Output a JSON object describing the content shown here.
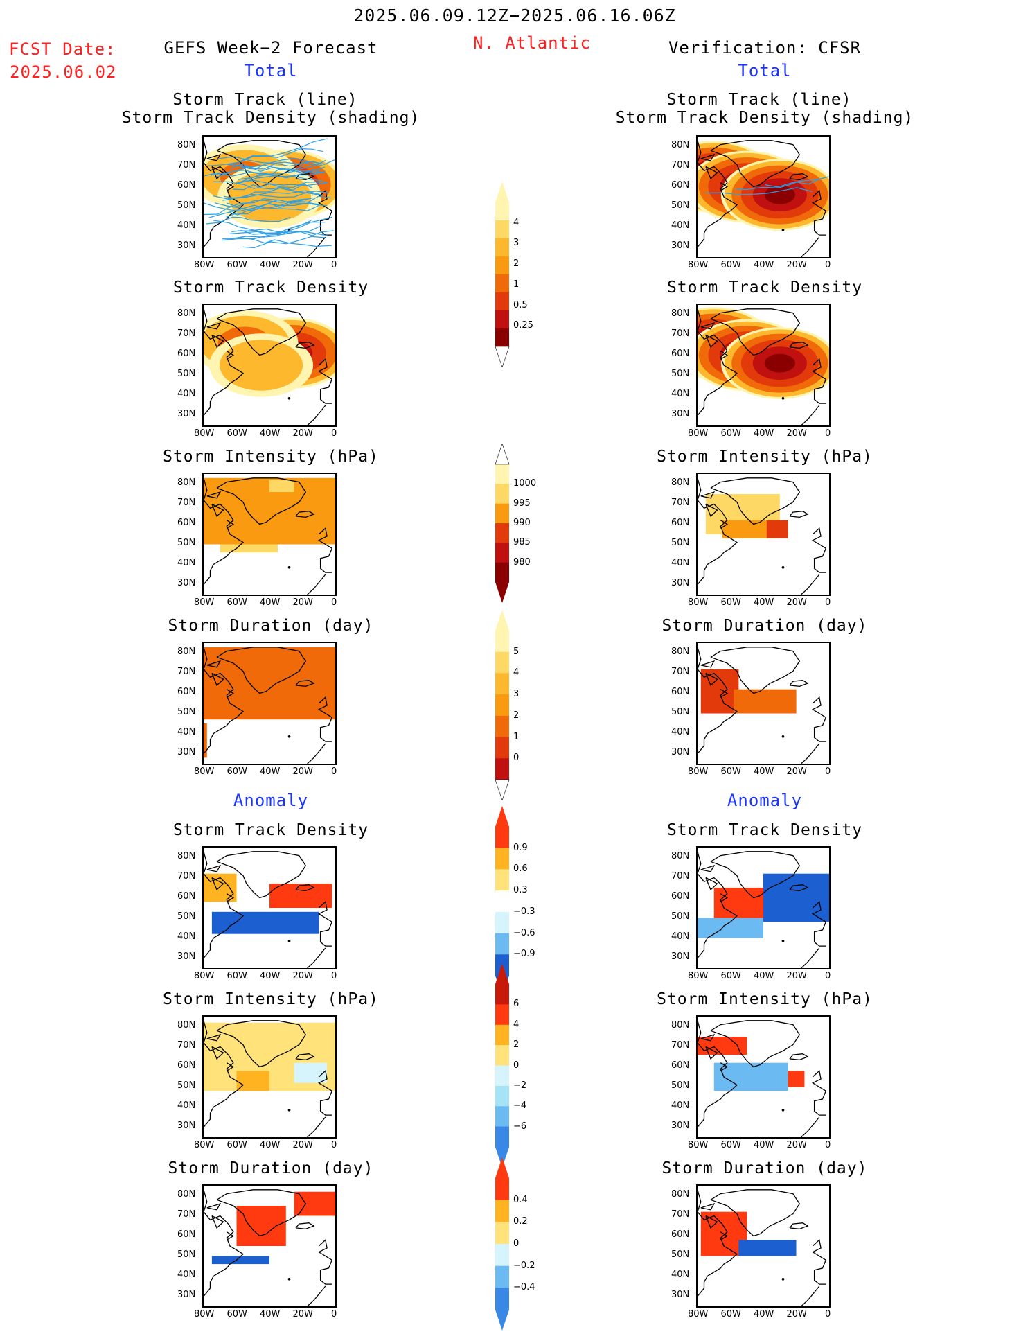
{
  "header": {
    "date_range": "2025.06.09.12Z−2025.06.16.06Z",
    "fcst_label": "FCST Date:",
    "fcst_date": "2025.06.02",
    "left_title": "GEFS Week−2 Forecast",
    "region": "N. Atlantic",
    "right_title": "Verification: CFSR",
    "total_label": "Total",
    "anomaly_label": "Anomaly"
  },
  "colors": {
    "total_scale": [
      "#fff5b0",
      "#fdd865",
      "#fdb82e",
      "#f99a10",
      "#f06a0a",
      "#e23a0a",
      "#c01010",
      "#8a0000"
    ],
    "anom_pos": [
      "#ffe27a",
      "#ffb320",
      "#ff7d10",
      "#ff3a10",
      "#c81a0a"
    ],
    "anom_neg": [
      "#d6f4fb",
      "#a4e4f6",
      "#6cbaf2",
      "#3a88e6",
      "#1b5fd1",
      "#0a3ea8"
    ],
    "track_line": "#2aa0e8",
    "accent_red": "#ff2020",
    "accent_blue": "#1a33ff"
  },
  "axes": {
    "lat_ticks": [
      "80N",
      "70N",
      "60N",
      "50N",
      "40N",
      "30N"
    ],
    "lon_ticks": [
      "80W",
      "60W",
      "40W",
      "20W",
      "0"
    ]
  },
  "chart_data": [
    {
      "type": "heatmap",
      "panel": "gefs-total-track",
      "title": "Storm Track (line)",
      "subtitle": "Storm Track Density (shading)",
      "source": "GEFS Week-2 Forecast",
      "xlim": [
        -80,
        0
      ],
      "ylim": [
        25,
        85
      ],
      "centers": [
        {
          "lon": -30,
          "lat": 61,
          "value": 3.5
        },
        {
          "lon": -55,
          "lat": 65,
          "value": 1.2
        },
        {
          "lon": -40,
          "lat": 55,
          "value": 1.0
        }
      ]
    },
    {
      "type": "heatmap",
      "panel": "cfsr-total-track",
      "title": "Storm Track (line)",
      "subtitle": "Storm Track Density (shading)",
      "source": "Verification: CFSR",
      "xlim": [
        -80,
        0
      ],
      "ylim": [
        25,
        85
      ],
      "centers": [
        {
          "lon": -70,
          "lat": 65,
          "value": 4.5
        },
        {
          "lon": -50,
          "lat": 60,
          "value": 4.5
        },
        {
          "lon": -30,
          "lat": 56,
          "value": 4.5
        }
      ]
    },
    {
      "type": "heatmap",
      "panel": "gefs-total-density",
      "title": "Storm Track Density",
      "source": "GEFS Week-2 Forecast",
      "xlim": [
        -80,
        0
      ],
      "ylim": [
        25,
        85
      ],
      "centers": [
        {
          "lon": -27,
          "lat": 61,
          "value": 3.8
        },
        {
          "lon": -55,
          "lat": 66,
          "value": 1.3
        },
        {
          "lon": -45,
          "lat": 55,
          "value": 1.0
        }
      ]
    },
    {
      "type": "heatmap",
      "panel": "cfsr-total-density",
      "title": "Storm Track Density",
      "source": "Verification: CFSR",
      "xlim": [
        -80,
        0
      ],
      "ylim": [
        25,
        85
      ],
      "centers": [
        {
          "lon": -70,
          "lat": 66,
          "value": 4.5
        },
        {
          "lon": -50,
          "lat": 60,
          "value": 4.5
        },
        {
          "lon": -30,
          "lat": 56,
          "value": 4.5
        }
      ]
    },
    {
      "type": "heatmap",
      "panel": "gefs-total-intensity",
      "title": "Storm Intensity (hPa)",
      "source": "GEFS Week-2 Forecast",
      "xlim": [
        -80,
        0
      ],
      "ylim": [
        25,
        85
      ],
      "regions": [
        {
          "lon": [
            -80,
            0
          ],
          "lat": [
            50,
            83
          ],
          "value": 992
        },
        {
          "lon": [
            -70,
            -35
          ],
          "lat": [
            46,
            50
          ],
          "value": 997
        },
        {
          "lon": [
            -40,
            -25
          ],
          "lat": [
            76,
            82
          ],
          "value": 997
        }
      ]
    },
    {
      "type": "heatmap",
      "panel": "cfsr-total-intensity",
      "title": "Storm Intensity (hPa)",
      "source": "Verification: CFSR",
      "xlim": [
        -80,
        0
      ],
      "ylim": [
        25,
        85
      ],
      "regions": [
        {
          "lon": [
            -75,
            -30
          ],
          "lat": [
            55,
            75
          ],
          "value": 997
        },
        {
          "lon": [
            -65,
            -30
          ],
          "lat": [
            53,
            62
          ],
          "value": 993
        },
        {
          "lon": [
            -38,
            -25
          ],
          "lat": [
            53,
            62
          ],
          "value": 988
        }
      ]
    },
    {
      "type": "heatmap",
      "panel": "gefs-total-duration",
      "title": "Storm Duration (day)",
      "source": "GEFS Week-2 Forecast",
      "xlim": [
        -80,
        0
      ],
      "ylim": [
        25,
        85
      ],
      "regions": [
        {
          "lon": [
            -80,
            0
          ],
          "lat": [
            47,
            83
          ],
          "value": 3.5
        },
        {
          "lon": [
            -80,
            -78
          ],
          "lat": [
            28,
            45
          ],
          "value": 3.5
        }
      ]
    },
    {
      "type": "heatmap",
      "panel": "cfsr-total-duration",
      "title": "Storm Duration (day)",
      "source": "Verification: CFSR",
      "xlim": [
        -80,
        0
      ],
      "ylim": [
        25,
        85
      ],
      "regions": [
        {
          "lon": [
            -78,
            -55
          ],
          "lat": [
            50,
            72
          ],
          "value": 4.5
        },
        {
          "lon": [
            -58,
            -20
          ],
          "lat": [
            50,
            62
          ],
          "value": 3.5
        }
      ]
    },
    {
      "type": "heatmap",
      "panel": "gefs-anom-density",
      "title": "Storm Track Density",
      "source": "GEFS Week-2 Forecast",
      "xlim": [
        -80,
        0
      ],
      "ylim": [
        25,
        85
      ],
      "regions": [
        {
          "lon": [
            -40,
            -2
          ],
          "lat": [
            55,
            67
          ],
          "value": 0.9
        },
        {
          "lon": [
            -75,
            -10
          ],
          "lat": [
            42,
            53
          ],
          "value": -0.6
        },
        {
          "lon": [
            -80,
            -60
          ],
          "lat": [
            58,
            72
          ],
          "value": 0.3
        }
      ]
    },
    {
      "type": "heatmap",
      "panel": "cfsr-anom-density",
      "title": "Storm Track Density",
      "source": "Verification: CFSR",
      "xlim": [
        -80,
        0
      ],
      "ylim": [
        25,
        85
      ],
      "regions": [
        {
          "lon": [
            -70,
            -20
          ],
          "lat": [
            50,
            65
          ],
          "value": 0.9
        },
        {
          "lon": [
            -40,
            0
          ],
          "lat": [
            48,
            72
          ],
          "value": -0.9
        },
        {
          "lon": [
            -80,
            -40
          ],
          "lat": [
            40,
            50
          ],
          "value": -0.5
        }
      ]
    },
    {
      "type": "heatmap",
      "panel": "gefs-anom-intensity",
      "title": "Storm Intensity (hPa)",
      "source": "GEFS Week-2 Forecast",
      "xlim": [
        -80,
        0
      ],
      "ylim": [
        25,
        85
      ],
      "regions": [
        {
          "lon": [
            -80,
            0
          ],
          "lat": [
            48,
            82
          ],
          "value": 1
        },
        {
          "lon": [
            -60,
            -40
          ],
          "lat": [
            48,
            58
          ],
          "value": 3
        },
        {
          "lon": [
            -25,
            -5
          ],
          "lat": [
            52,
            62
          ],
          "value": -1
        }
      ]
    },
    {
      "type": "heatmap",
      "panel": "cfsr-anom-intensity",
      "title": "Storm Intensity (hPa)",
      "source": "Verification: CFSR",
      "xlim": [
        -80,
        0
      ],
      "ylim": [
        25,
        85
      ],
      "regions": [
        {
          "lon": [
            -80,
            -50
          ],
          "lat": [
            66,
            75
          ],
          "value": 5
        },
        {
          "lon": [
            -70,
            -25
          ],
          "lat": [
            48,
            62
          ],
          "value": -3
        },
        {
          "lon": [
            -25,
            -15
          ],
          "lat": [
            50,
            58
          ],
          "value": 5
        }
      ]
    },
    {
      "type": "heatmap",
      "panel": "gefs-anom-duration",
      "title": "Storm Duration (day)",
      "source": "GEFS Week-2 Forecast",
      "xlim": [
        -80,
        0
      ],
      "ylim": [
        25,
        85
      ],
      "regions": [
        {
          "lon": [
            -60,
            -30
          ],
          "lat": [
            55,
            75
          ],
          "value": 0.4
        },
        {
          "lon": [
            -25,
            0
          ],
          "lat": [
            70,
            82
          ],
          "value": 0.4
        },
        {
          "lon": [
            -75,
            -40
          ],
          "lat": [
            46,
            50
          ],
          "value": -0.3
        }
      ]
    },
    {
      "type": "heatmap",
      "panel": "cfsr-anom-duration",
      "title": "Storm Duration (day)",
      "source": "Verification: CFSR",
      "xlim": [
        -80,
        0
      ],
      "ylim": [
        25,
        85
      ],
      "regions": [
        {
          "lon": [
            -78,
            -50
          ],
          "lat": [
            50,
            72
          ],
          "value": 0.4
        },
        {
          "lon": [
            -55,
            -20
          ],
          "lat": [
            50,
            58
          ],
          "value": -0.4
        }
      ]
    }
  ],
  "colorbars": [
    {
      "name": "density",
      "labels": [
        "4",
        "3",
        "2",
        "1",
        "0.5",
        "0.25"
      ]
    },
    {
      "name": "intensity",
      "labels": [
        "1000",
        "995",
        "990",
        "985",
        "980"
      ]
    },
    {
      "name": "duration",
      "labels": [
        "5",
        "4",
        "3",
        "2",
        "1",
        "0"
      ]
    },
    {
      "name": "anom-density",
      "labels": [
        "0.9",
        "0.6",
        "0.3",
        "−0.3",
        "−0.6",
        "−0.9"
      ]
    },
    {
      "name": "anom-intensity",
      "labels": [
        "6",
        "4",
        "2",
        "0",
        "−2",
        "−4",
        "−6"
      ]
    },
    {
      "name": "anom-duration",
      "labels": [
        "0.4",
        "0.2",
        "0",
        "−0.2",
        "−0.4"
      ]
    }
  ]
}
